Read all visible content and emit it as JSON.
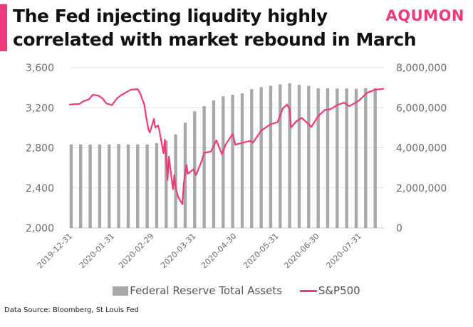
{
  "header": {
    "title_lines": [
      "The Fed injecting liqudity highly",
      "correlated with market rebound in March"
    ],
    "brand": "AQUMON",
    "accent_color": "#ee3a7c"
  },
  "footer": {
    "source": "Data Source: Bloomberg, St Louis Fed"
  },
  "chart_data": {
    "type": "bar",
    "title": "The Fed injecting liqudity highly correlated with market rebound in March",
    "categories": [
      "2019-12-31",
      "2020-01-31",
      "2020-02-29",
      "2020-03-31",
      "2020-04-30",
      "2020-05-31",
      "2020-06-30",
      "2020-07-31"
    ],
    "x_tick_labels": [
      "2019-12-31",
      "2020-01-31",
      "2020-02-29",
      "2020-03-31",
      "2020-04-30",
      "2020-05-31",
      "2020-06-30",
      "2020-07-31"
    ],
    "left_axis": {
      "ylim": [
        2000,
        3600
      ],
      "ticks": [
        "2,000",
        "2,400",
        "2,800",
        "3,200",
        "3,600"
      ]
    },
    "right_axis": {
      "ylim": [
        0,
        8000000
      ],
      "ticks": [
        "0",
        "2,000,000",
        "4,000,000",
        "6,000,000",
        "8,000,000"
      ]
    },
    "grid": true,
    "legend": "bottom",
    "series": [
      {
        "name": "Federal Reserve Total Assets",
        "type": "bar",
        "axis": "right",
        "color": "#a8a8a8",
        "x": [
          "2020-01-01",
          "2020-01-08",
          "2020-01-15",
          "2020-01-22",
          "2020-01-29",
          "2020-02-05",
          "2020-02-12",
          "2020-02-19",
          "2020-02-26",
          "2020-03-04",
          "2020-03-11",
          "2020-03-18",
          "2020-03-25",
          "2020-04-01",
          "2020-04-08",
          "2020-04-15",
          "2020-04-22",
          "2020-04-29",
          "2020-05-06",
          "2020-05-13",
          "2020-05-20",
          "2020-05-27",
          "2020-06-03",
          "2020-06-10",
          "2020-06-17",
          "2020-06-24",
          "2020-07-01",
          "2020-07-08",
          "2020-07-15",
          "2020-07-22",
          "2020-07-29",
          "2020-08-05",
          "2020-08-12"
        ],
        "values": [
          4170000,
          4170000,
          4160000,
          4170000,
          4170000,
          4190000,
          4170000,
          4170000,
          4160000,
          4240000,
          4360000,
          4670000,
          5250000,
          5820000,
          6080000,
          6360000,
          6570000,
          6650000,
          6720000,
          6930000,
          7030000,
          7100000,
          7170000,
          7220000,
          7140000,
          7090000,
          6970000,
          6980000,
          6960000,
          6960000,
          6950000,
          6980000,
          6980000
        ]
      },
      {
        "name": "S&P500",
        "type": "line",
        "axis": "left",
        "color": "#ee3a7c",
        "x": [
          "2019-12-31",
          "2020-01-03",
          "2020-01-07",
          "2020-01-10",
          "2020-01-14",
          "2020-01-17",
          "2020-01-21",
          "2020-01-24",
          "2020-01-27",
          "2020-01-31",
          "2020-02-04",
          "2020-02-07",
          "2020-02-11",
          "2020-02-14",
          "2020-02-19",
          "2020-02-21",
          "2020-02-24",
          "2020-02-25",
          "2020-02-27",
          "2020-02-28",
          "2020-03-02",
          "2020-03-03",
          "2020-03-05",
          "2020-03-06",
          "2020-03-09",
          "2020-03-10",
          "2020-03-12",
          "2020-03-13",
          "2020-03-16",
          "2020-03-17",
          "2020-03-18",
          "2020-03-20",
          "2020-03-23",
          "2020-03-24",
          "2020-03-26",
          "2020-03-27",
          "2020-03-31",
          "2020-04-02",
          "2020-04-06",
          "2020-04-08",
          "2020-04-13",
          "2020-04-17",
          "2020-04-21",
          "2020-04-24",
          "2020-04-29",
          "2020-05-01",
          "2020-05-06",
          "2020-05-12",
          "2020-05-14",
          "2020-05-20",
          "2020-05-27",
          "2020-06-01",
          "2020-06-05",
          "2020-06-08",
          "2020-06-10",
          "2020-06-11",
          "2020-06-15",
          "2020-06-19",
          "2020-06-26",
          "2020-07-01",
          "2020-07-06",
          "2020-07-10",
          "2020-07-15",
          "2020-07-20",
          "2020-07-24",
          "2020-07-31",
          "2020-08-06",
          "2020-08-12",
          "2020-08-18"
        ],
        "values": [
          3231,
          3235,
          3237,
          3265,
          3283,
          3330,
          3321,
          3295,
          3243,
          3226,
          3298,
          3327,
          3357,
          3380,
          3386,
          3338,
          3226,
          3128,
          2979,
          2954,
          3090,
          3003,
          3024,
          2972,
          2747,
          2882,
          2481,
          2711,
          2386,
          2529,
          2398,
          2305,
          2237,
          2447,
          2630,
          2541,
          2585,
          2527,
          2664,
          2750,
          2762,
          2875,
          2737,
          2837,
          2939,
          2831,
          2849,
          2870,
          2852,
          2972,
          3036,
          3055,
          3193,
          3232,
          3190,
          3002,
          3067,
          3098,
          3009,
          3116,
          3179,
          3185,
          3227,
          3251,
          3215,
          3271,
          3349,
          3380,
          3389
        ]
      }
    ]
  }
}
